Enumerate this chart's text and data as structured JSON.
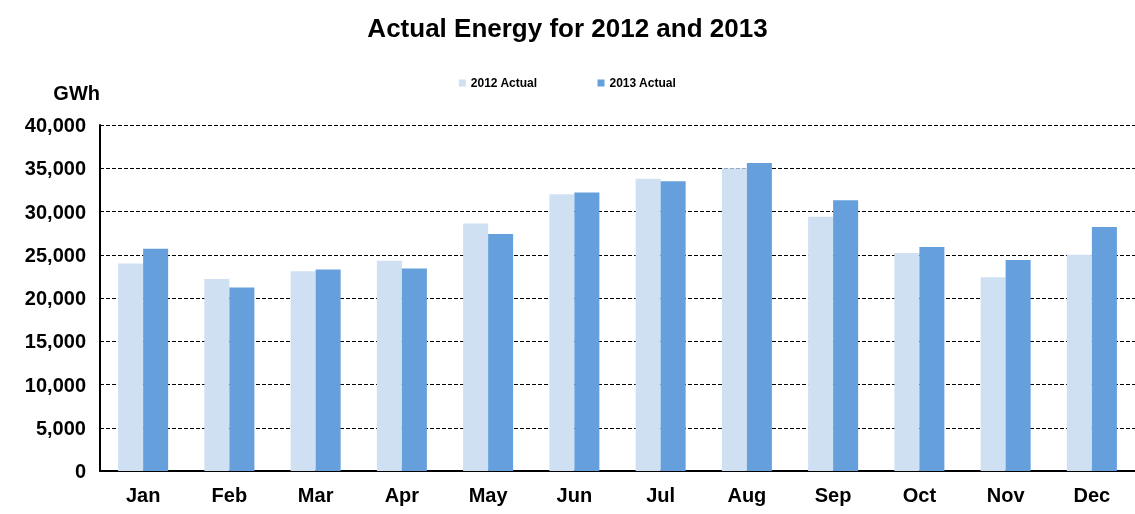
{
  "chart_data": {
    "type": "bar",
    "title": "Actual Energy for 2012 and 2013",
    "ylabel": "GWh",
    "categories": [
      "Jan",
      "Feb",
      "Mar",
      "Apr",
      "May",
      "Jun",
      "Jul",
      "Aug",
      "Sep",
      "Oct",
      "Nov",
      "Dec"
    ],
    "series": [
      {
        "name": "2012 Actual",
        "color": "#cfe0f3",
        "values": [
          24000,
          22200,
          23100,
          24300,
          28600,
          32000,
          33800,
          35000,
          29400,
          25200,
          22400,
          25000
        ]
      },
      {
        "name": "2013 Actual",
        "color": "#65a0dc",
        "values": [
          25700,
          21200,
          23300,
          23400,
          27400,
          32200,
          33500,
          35600,
          31300,
          25900,
          24400,
          28200
        ]
      }
    ],
    "ylim": [
      0,
      40000
    ],
    "yticks": [
      0,
      {
        "value": 5000,
        "label": "5,000"
      },
      {
        "value": 10000,
        "label": "10,000"
      },
      {
        "value": 15000,
        "label": "15,000"
      },
      {
        "value": 20000,
        "label": "20,000"
      },
      {
        "value": 25000,
        "label": "25,000"
      },
      {
        "value": 30000,
        "label": "30,000"
      },
      {
        "value": 35000,
        "label": "35,000"
      },
      {
        "value": 40000,
        "label": "40,000"
      }
    ],
    "grid": "y",
    "legend": "top"
  }
}
